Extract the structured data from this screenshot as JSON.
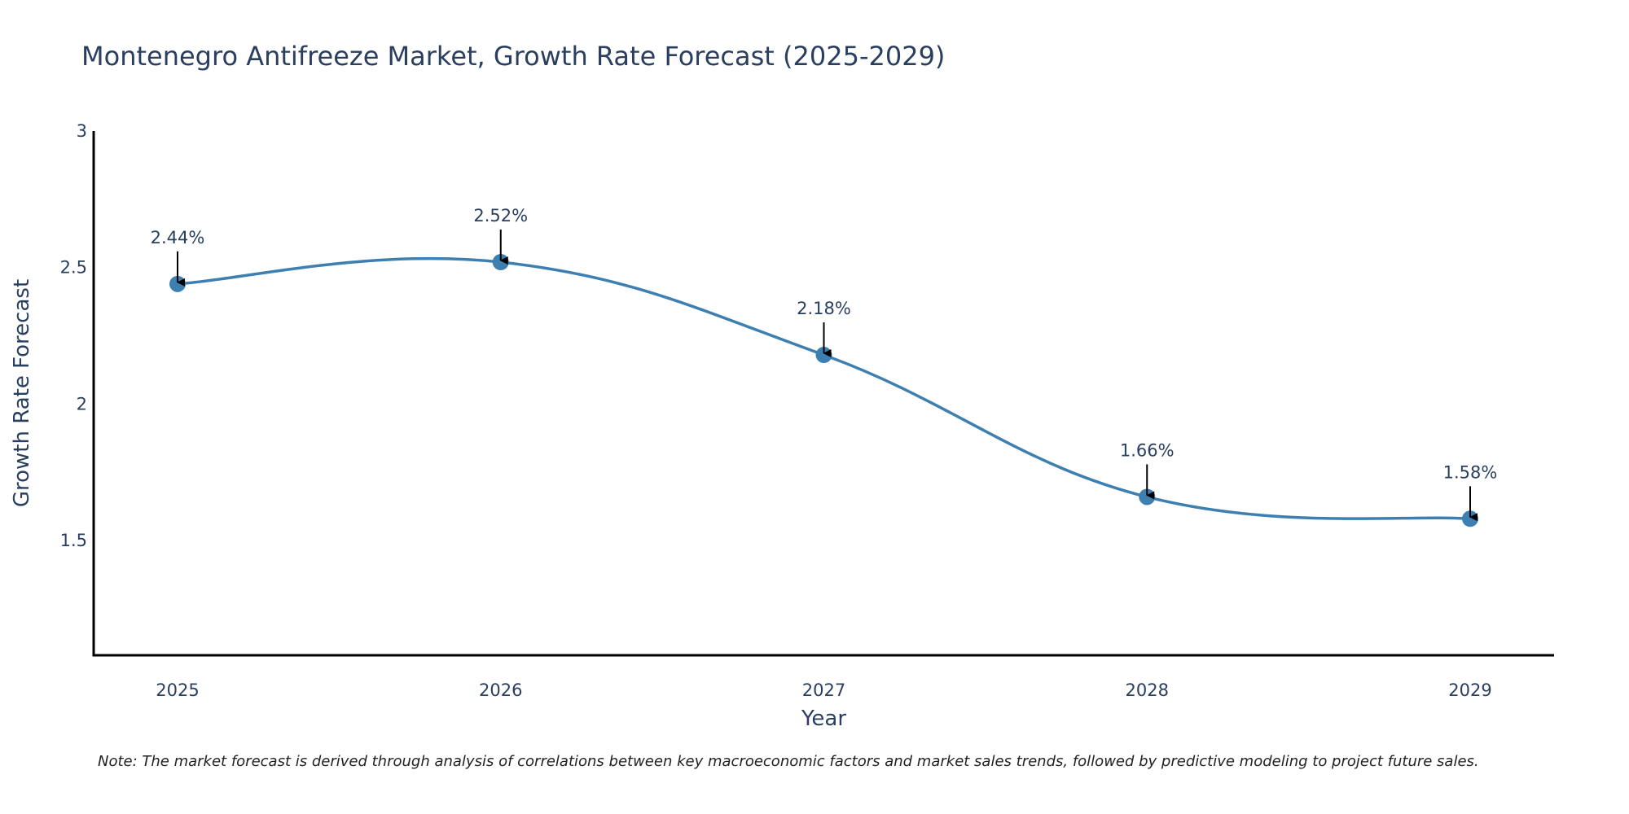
{
  "chart_data": {
    "type": "line",
    "title": "Montenegro Antifreeze Market, Growth Rate Forecast (2025-2029)",
    "xlabel": "Year",
    "ylabel": "Growth Rate Forecast",
    "categories": [
      "2025",
      "2026",
      "2027",
      "2028",
      "2029"
    ],
    "series": [
      {
        "name": "Growth Rate Forecast",
        "values": [
          2.44,
          2.52,
          2.18,
          1.66,
          1.58
        ],
        "labels": [
          "2.44%",
          "2.52%",
          "2.18%",
          "1.66%",
          "1.58%"
        ]
      }
    ],
    "ylim": [
      1.08,
      3.0
    ],
    "yticks": [
      1.5,
      2,
      2.5,
      3
    ],
    "ytick_labels": [
      "1.5",
      "2",
      "2.5",
      "3"
    ],
    "grid": false,
    "line_shape": "spline",
    "colors": {
      "line": "#3d7fb1",
      "marker": "#3d7fb1",
      "arrow": "#000000",
      "text": "#2a3f5f",
      "axis": "#000000"
    },
    "note": "Note: The market forecast is derived through analysis of correlations between key macroeconomic factors and market sales trends, followed by predictive modeling to project future sales."
  }
}
